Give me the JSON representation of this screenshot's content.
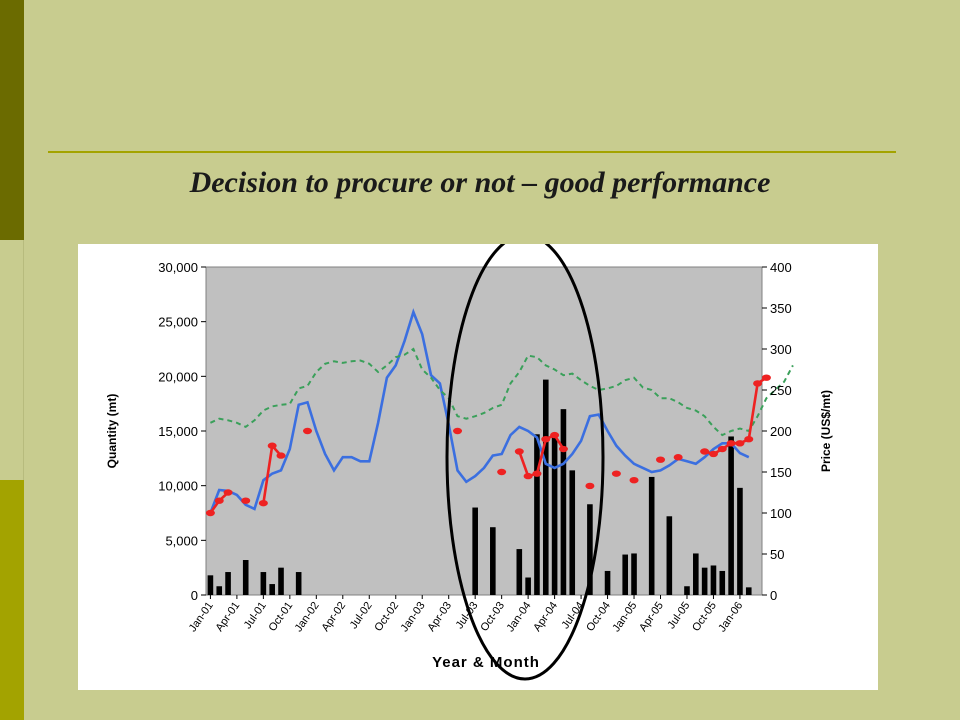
{
  "title": "Decision to procure or not – good performance",
  "chart_data": {
    "type": "bar",
    "xlabel": "Year & Month",
    "ylabel_left": "Quantity (mt)",
    "ylabel_right": "Price (US$/mt)",
    "ylim_left": [
      0,
      30000
    ],
    "ylim_right": [
      0,
      400
    ],
    "left_ticks": [
      "0",
      "5,000",
      "10,000",
      "15,000",
      "20,000",
      "25,000",
      "30,000"
    ],
    "right_ticks": [
      "0",
      "50",
      "100",
      "150",
      "200",
      "250",
      "300",
      "350",
      "400"
    ],
    "x_tick_labels": [
      "Jan-01",
      "Apr-01",
      "Jul-01",
      "Oct-01",
      "Jan-02",
      "Apr-02",
      "Jul-02",
      "Oct-02",
      "Jan-03",
      "Apr-03",
      "Jul-03",
      "Oct-03",
      "Jan-04",
      "Apr-04",
      "Jul-04",
      "Oct-04",
      "Jan-05",
      "Apr-05",
      "Jul-05",
      "Oct-05",
      "Jan-06"
    ],
    "plot_background": "#c0c0c0",
    "grid": false,
    "legend": "none",
    "annotation": "ellipse highlighting Jul-03 to Oct-04",
    "series": [
      {
        "kind": "bar",
        "axis": "left",
        "color": "#000000",
        "values": [
          1800,
          800,
          2100,
          0,
          3200,
          0,
          2100,
          1000,
          2500,
          0,
          2100,
          0,
          0,
          0,
          0,
          0,
          0,
          0,
          0,
          0,
          0,
          0,
          0,
          0,
          0,
          0,
          0,
          0,
          0,
          0,
          8000,
          0,
          6200,
          0,
          0,
          4200,
          1600,
          14700,
          19700,
          14700,
          17000,
          11400,
          0,
          8300,
          0,
          2200,
          0,
          3700,
          3800,
          0,
          10800,
          0,
          7200,
          0,
          800,
          3800,
          2500,
          2700,
          2200,
          14500,
          9800,
          700,
          0
        ]
      },
      {
        "kind": "line",
        "axis": "right",
        "color": "#3b6fe0",
        "values": [
          100,
          128,
          127,
          122,
          110,
          105,
          140,
          148,
          152,
          178,
          232,
          235,
          200,
          172,
          152,
          168,
          168,
          163,
          163,
          210,
          265,
          280,
          310,
          345,
          318,
          268,
          258,
          208,
          152,
          138,
          145,
          155,
          170,
          172,
          195,
          205,
          200,
          192,
          160,
          155,
          160,
          172,
          188,
          218,
          220,
          200,
          182,
          170,
          160,
          155,
          150,
          152,
          158,
          166,
          163,
          160,
          168,
          178,
          185,
          185,
          173,
          168
        ]
      },
      {
        "kind": "line",
        "axis": "right",
        "color": "#3aa05a",
        "dashed": true,
        "values": [
          210,
          215,
          213,
          210,
          205,
          213,
          225,
          230,
          232,
          233,
          252,
          255,
          272,
          282,
          285,
          283,
          285,
          286,
          282,
          272,
          280,
          290,
          293,
          300,
          275,
          265,
          250,
          240,
          218,
          215,
          218,
          222,
          228,
          232,
          258,
          272,
          292,
          290,
          280,
          275,
          268,
          270,
          262,
          255,
          250,
          252,
          255,
          262,
          265,
          253,
          250,
          240,
          240,
          235,
          228,
          225,
          218,
          205,
          195,
          200,
          203,
          200,
          218,
          240,
          250,
          260,
          280
        ]
      },
      {
        "kind": "line",
        "axis": "right",
        "color": "#ee2222",
        "marker": "circle",
        "gaps": true,
        "values": [
          100,
          115,
          125,
          null,
          115,
          null,
          112,
          182,
          170,
          null,
          null,
          200,
          null,
          null,
          null,
          null,
          null,
          null,
          null,
          null,
          null,
          null,
          null,
          null,
          null,
          null,
          null,
          null,
          200,
          null,
          null,
          null,
          null,
          150,
          null,
          175,
          145,
          148,
          190,
          195,
          178,
          null,
          null,
          133,
          null,
          null,
          148,
          null,
          140,
          null,
          null,
          165,
          null,
          168,
          null,
          null,
          175,
          172,
          178,
          185,
          185,
          190,
          258,
          265
        ]
      }
    ]
  }
}
